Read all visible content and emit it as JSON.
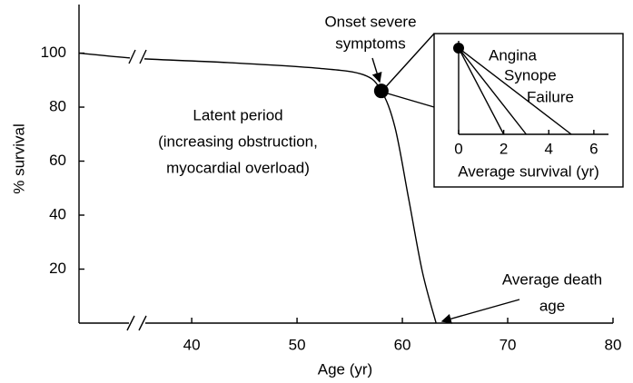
{
  "chart_data": [
    {
      "type": "line",
      "xlabel": "Age (yr)",
      "ylabel": "% survival",
      "x": [
        29.3,
        35,
        43.4,
        52,
        56.3,
        58,
        59.3,
        60.6,
        61.9,
        63.2
      ],
      "series": [
        {
          "name": null,
          "color": "#000000",
          "values": [
            100,
            98,
            96.5,
            94.4,
            92,
            86,
            72.5,
            46,
            19,
            0
          ]
        }
      ],
      "xlim": [
        29.3,
        80
      ],
      "ylim": [
        0,
        118
      ],
      "xticks": [
        40,
        50,
        60,
        70,
        80
      ],
      "yticks": [
        20,
        40,
        60,
        80,
        100
      ],
      "annotations": [
        [
          "Onset severe",
          "symptoms"
        ],
        [
          "Latent period",
          "(increasing obstruction,",
          "myocardial overload)"
        ],
        [
          "Average death",
          "age"
        ]
      ]
    },
    {
      "type": "fan",
      "xlabel": "Average survival (yr)",
      "xlim": [
        0,
        6.65
      ],
      "xticks": [
        0,
        2,
        4,
        6
      ],
      "series": [
        {
          "name": "Angina",
          "color": "#000000",
          "values": [
            5
          ]
        },
        {
          "name": "Synope",
          "color": "#000000",
          "values": [
            3
          ]
        },
        {
          "name": "Failure",
          "color": "#000000",
          "values": [
            2
          ]
        }
      ]
    }
  ]
}
